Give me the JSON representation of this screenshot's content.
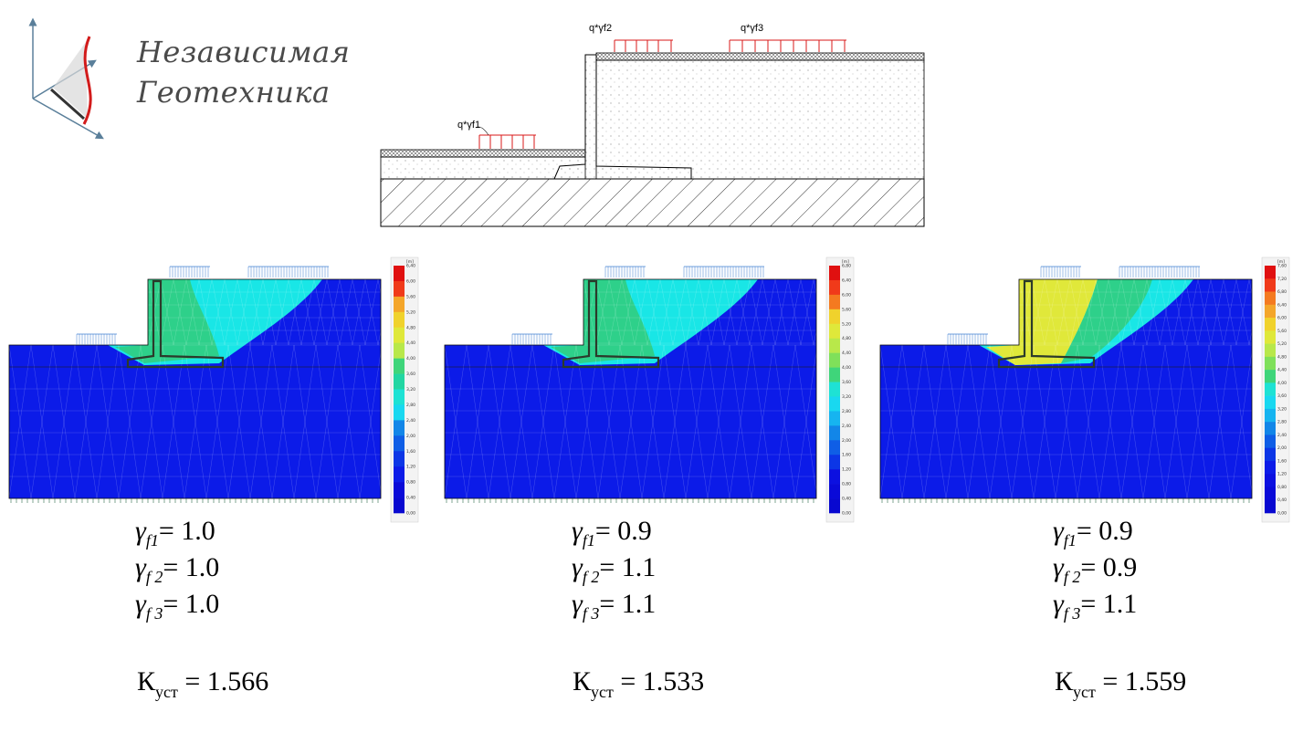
{
  "logo": {
    "line1": "Независимая",
    "line2": "Геотехника"
  },
  "scheme": {
    "load_labels": [
      "q*γf1",
      "q*γf2",
      "q*γf3"
    ]
  },
  "legend_unit": "[m]",
  "panels": [
    {
      "legend_ticks": [
        "6,40",
        "6,00",
        "5,60",
        "5,20",
        "4,80",
        "4,40",
        "4,00",
        "3,60",
        "3,20",
        "2,80",
        "2,40",
        "2,00",
        "1,60",
        "1,20",
        "0,80",
        "0,40",
        "0,00"
      ],
      "gf1_label": "γ",
      "gf1_sub": "f1",
      "gf1_value": "= 1.0",
      "gf2_label": "γ",
      "gf2_sub": "f 2",
      "gf2_value": "= 1.0",
      "gf3_label": "γ",
      "gf3_sub": "f 3",
      "gf3_value": "= 1.0",
      "k_label": "К",
      "k_sub": "уст",
      "k_value": " = 1.566"
    },
    {
      "legend_ticks": [
        "6,80",
        "6,40",
        "6,00",
        "5,60",
        "5,20",
        "4,80",
        "4,40",
        "4,00",
        "3,60",
        "3,20",
        "2,80",
        "2,40",
        "2,00",
        "1,60",
        "1,20",
        "0,80",
        "0,40",
        "0,00"
      ],
      "gf1_label": "γ",
      "gf1_sub": "f1",
      "gf1_value": "= 0.9",
      "gf2_label": "γ",
      "gf2_sub": "f 2",
      "gf2_value": "= 1.1",
      "gf3_label": "γ",
      "gf3_sub": "f 3",
      "gf3_value": "= 1.1",
      "k_label": "К",
      "k_sub": "уст",
      "k_value": " = 1.533"
    },
    {
      "legend_ticks": [
        "7,60",
        "7,20",
        "6,80",
        "6,40",
        "6,00",
        "5,60",
        "5,20",
        "4,80",
        "4,40",
        "4,00",
        "3,60",
        "3,20",
        "2,80",
        "2,40",
        "2,00",
        "1,60",
        "1,20",
        "0,80",
        "0,40",
        "0,00"
      ],
      "gf1_label": "γ",
      "gf1_sub": "f1",
      "gf1_value": "= 0.9",
      "gf2_label": "γ",
      "gf2_sub": "f 2",
      "gf2_value": "= 0.9",
      "gf3_label": "γ",
      "gf3_sub": "f 3",
      "gf3_value": "= 1.1",
      "k_label": "К",
      "k_sub": "уст",
      "k_value": " = 1.559"
    }
  ],
  "colors": {
    "deep_blue": "#0c1be8",
    "cyan": "#19e6e6",
    "green": "#2ed08a",
    "yellow": "#e0e83a",
    "red_load": "#d81818",
    "arrow_blue": "#3f7fd0"
  }
}
